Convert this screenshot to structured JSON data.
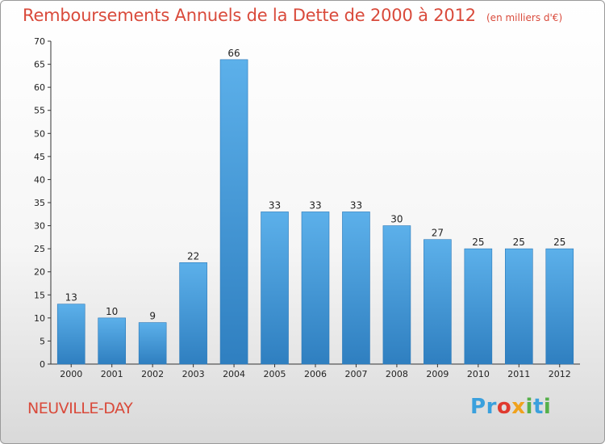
{
  "chart_data": {
    "type": "bar",
    "title": "Remboursements Annuels de la Dette de 2000 à 2012",
    "subtitle": "(en milliers d'€)",
    "categories": [
      "2000",
      "2001",
      "2002",
      "2003",
      "2004",
      "2005",
      "2006",
      "2007",
      "2008",
      "2009",
      "2010",
      "2011",
      "2012"
    ],
    "values": [
      13,
      10,
      9,
      22,
      66,
      33,
      33,
      33,
      30,
      27,
      25,
      25,
      25
    ],
    "ylim": [
      0,
      70
    ],
    "yticks": [
      0,
      5,
      10,
      15,
      20,
      25,
      30,
      35,
      40,
      45,
      50,
      55,
      60,
      65,
      70
    ],
    "grid": false,
    "bar_color": "#4a9fdc"
  },
  "footer": {
    "location": "NEUVILLE-DAY",
    "logo_letters": [
      {
        "ch": "P",
        "color": "#3aa0dd"
      },
      {
        "ch": "r",
        "color": "#3aa0dd"
      },
      {
        "ch": "o",
        "color": "#e03a2f"
      },
      {
        "ch": "x",
        "color": "#f0a21d"
      },
      {
        "ch": "i",
        "color": "#55b04a"
      },
      {
        "ch": "t",
        "color": "#3aa0dd"
      },
      {
        "ch": "i",
        "color": "#55b04a"
      }
    ]
  }
}
